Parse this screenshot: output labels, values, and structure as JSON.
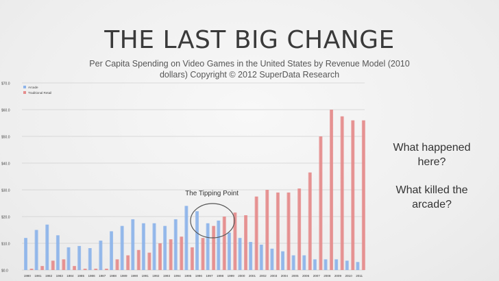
{
  "slide": {
    "title": "THE LAST BIG CHANGE",
    "subtitle": "Per Capita Spending on Video Games in the United States by Revenue Model (2010 dollars) Copyright © 2012 SuperData Research",
    "question_1": "What happened here?",
    "question_2": "What killed the arcade?"
  },
  "chart_data": {
    "type": "bar",
    "categories": [
      "1980",
      "1981",
      "1982",
      "1983",
      "1984",
      "1985",
      "1986",
      "1987",
      "1988",
      "1989",
      "1990",
      "1991",
      "1992",
      "1993",
      "1994",
      "1995",
      "1996",
      "1997",
      "1998",
      "1999",
      "2000",
      "2001",
      "2002",
      "2003",
      "2004",
      "2005",
      "2006",
      "2007",
      "2008",
      "2009",
      "2010",
      "2011"
    ],
    "series": [
      {
        "name": "Arcade",
        "color": "#8db4ea",
        "values": [
          12,
          15,
          17,
          13,
          8.5,
          9,
          8.2,
          11,
          14.5,
          16.5,
          19,
          17.5,
          17.5,
          16.5,
          19,
          24,
          22,
          17.5,
          18.5,
          14,
          12,
          10.5,
          9.5,
          8,
          7,
          5.5,
          5.5,
          4,
          4,
          4,
          3.5,
          3
        ]
      },
      {
        "name": "Traditional Retail",
        "color": "#e58c8c",
        "values": [
          0.5,
          1.5,
          3.5,
          4,
          1.5,
          0.5,
          0.5,
          0.5,
          4,
          5.5,
          7.5,
          6.5,
          10,
          11.5,
          12.5,
          8.5,
          12,
          16.5,
          20,
          21.5,
          20.5,
          27.5,
          30,
          29,
          29,
          30.5,
          36.5,
          50,
          60,
          57.5,
          56,
          56
        ]
      }
    ],
    "y_tick_labels": [
      "$0.0",
      "$10.0",
      "$20.0",
      "$30.0",
      "$40.0",
      "$50.0",
      "$60.0",
      "$70.0"
    ],
    "ylim": [
      0,
      70
    ],
    "grid": true,
    "legend": "top-left",
    "annotation": "The Tipping Point"
  }
}
